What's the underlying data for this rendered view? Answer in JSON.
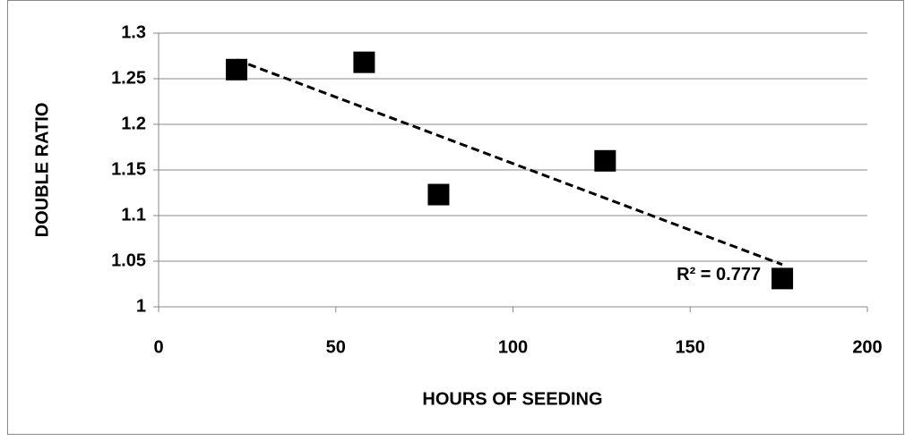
{
  "chart_data": {
    "type": "scatter",
    "x_label": "HOURS OF SEEDING",
    "y_label": "DOUBLE RATIO",
    "series": [
      {
        "name": "Double ratio",
        "color": "#000000",
        "x": [
          22,
          58,
          79,
          126,
          176
        ],
        "values": [
          1.26,
          1.268,
          1.123,
          1.16,
          1.031
        ]
      }
    ],
    "trendline": {
      "type": "linear",
      "label": "R² = 0.777"
    },
    "xlim": [
      0,
      200
    ],
    "xticks": [
      0,
      50,
      100,
      150,
      200
    ],
    "ylim": [
      1,
      1.3
    ],
    "yticks": [
      1,
      1.05,
      1.1,
      1.15,
      1.2,
      1.25,
      1.3
    ],
    "grid": true
  }
}
